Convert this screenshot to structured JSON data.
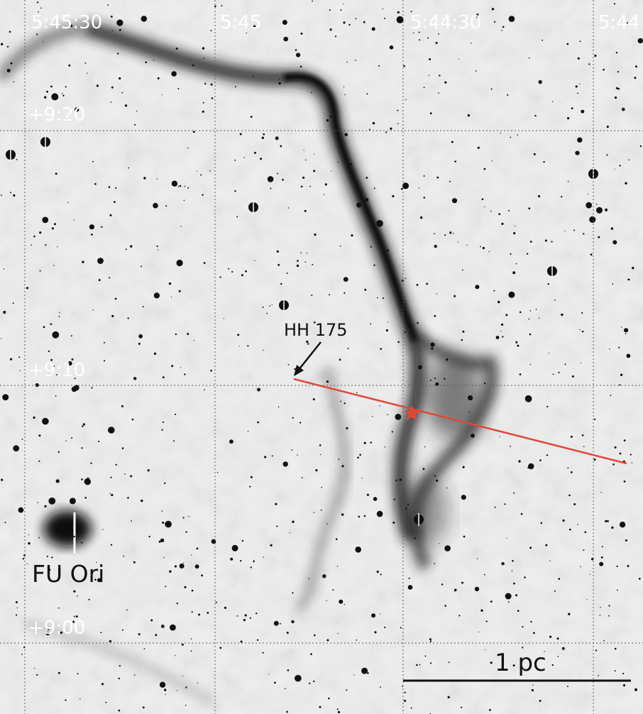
{
  "image": {
    "description_colors": {
      "background": "#eeeeee",
      "nebula_dark": "#1a1a1a",
      "grid": "#5a5a5a",
      "outflow_line": "#e0483a",
      "star_marker": "#e0483a",
      "coord_label": "#ffffff",
      "text_label": "#111111"
    }
  },
  "ra_labels": [
    "5:45:30",
    "5:45",
    "5:44:30",
    "5:44"
  ],
  "dec_labels": [
    "+9:20",
    "+9:10",
    "+9:00"
  ],
  "annotations": {
    "hh_object": "HH 175",
    "fu_ori": "FU Ori",
    "scale_bar": "1 pc"
  },
  "markers": {
    "source_star": "star-icon",
    "arrow": "arrow-icon"
  }
}
